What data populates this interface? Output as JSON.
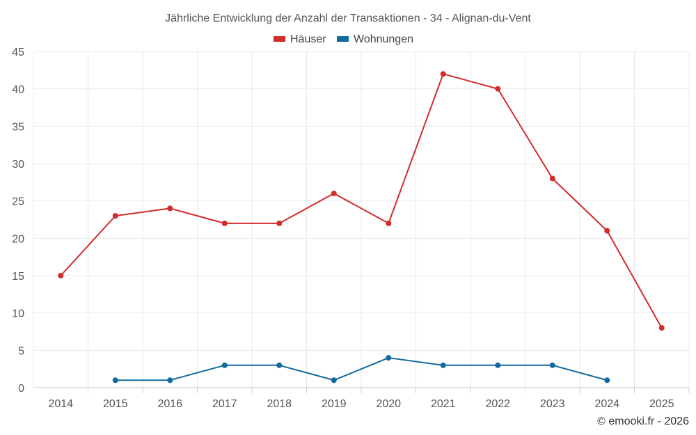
{
  "chart_data": {
    "type": "line",
    "title": "Jährliche Entwicklung der Anzahl der Transaktionen - 34 - Alignan-du-Vent",
    "categories": [
      "2014",
      "2015",
      "2016",
      "2017",
      "2018",
      "2019",
      "2020",
      "2021",
      "2022",
      "2023",
      "2024",
      "2025"
    ],
    "series": [
      {
        "name": "Häuser",
        "color": "#d32a2a",
        "values": [
          15,
          23,
          24,
          22,
          22,
          26,
          22,
          42,
          40,
          28,
          21,
          8
        ]
      },
      {
        "name": "Wohnungen",
        "color": "#0f6aa0",
        "values": [
          null,
          1,
          1,
          3,
          3,
          1,
          4,
          3,
          3,
          3,
          1,
          null
        ]
      }
    ],
    "ylim": [
      0,
      45
    ],
    "yticks": [
      0,
      5,
      10,
      15,
      20,
      25,
      30,
      35,
      40,
      45
    ],
    "grid": true,
    "legend_position": "top-center",
    "xlabel": "",
    "ylabel": ""
  },
  "credit": "© emooki.fr - 2026"
}
